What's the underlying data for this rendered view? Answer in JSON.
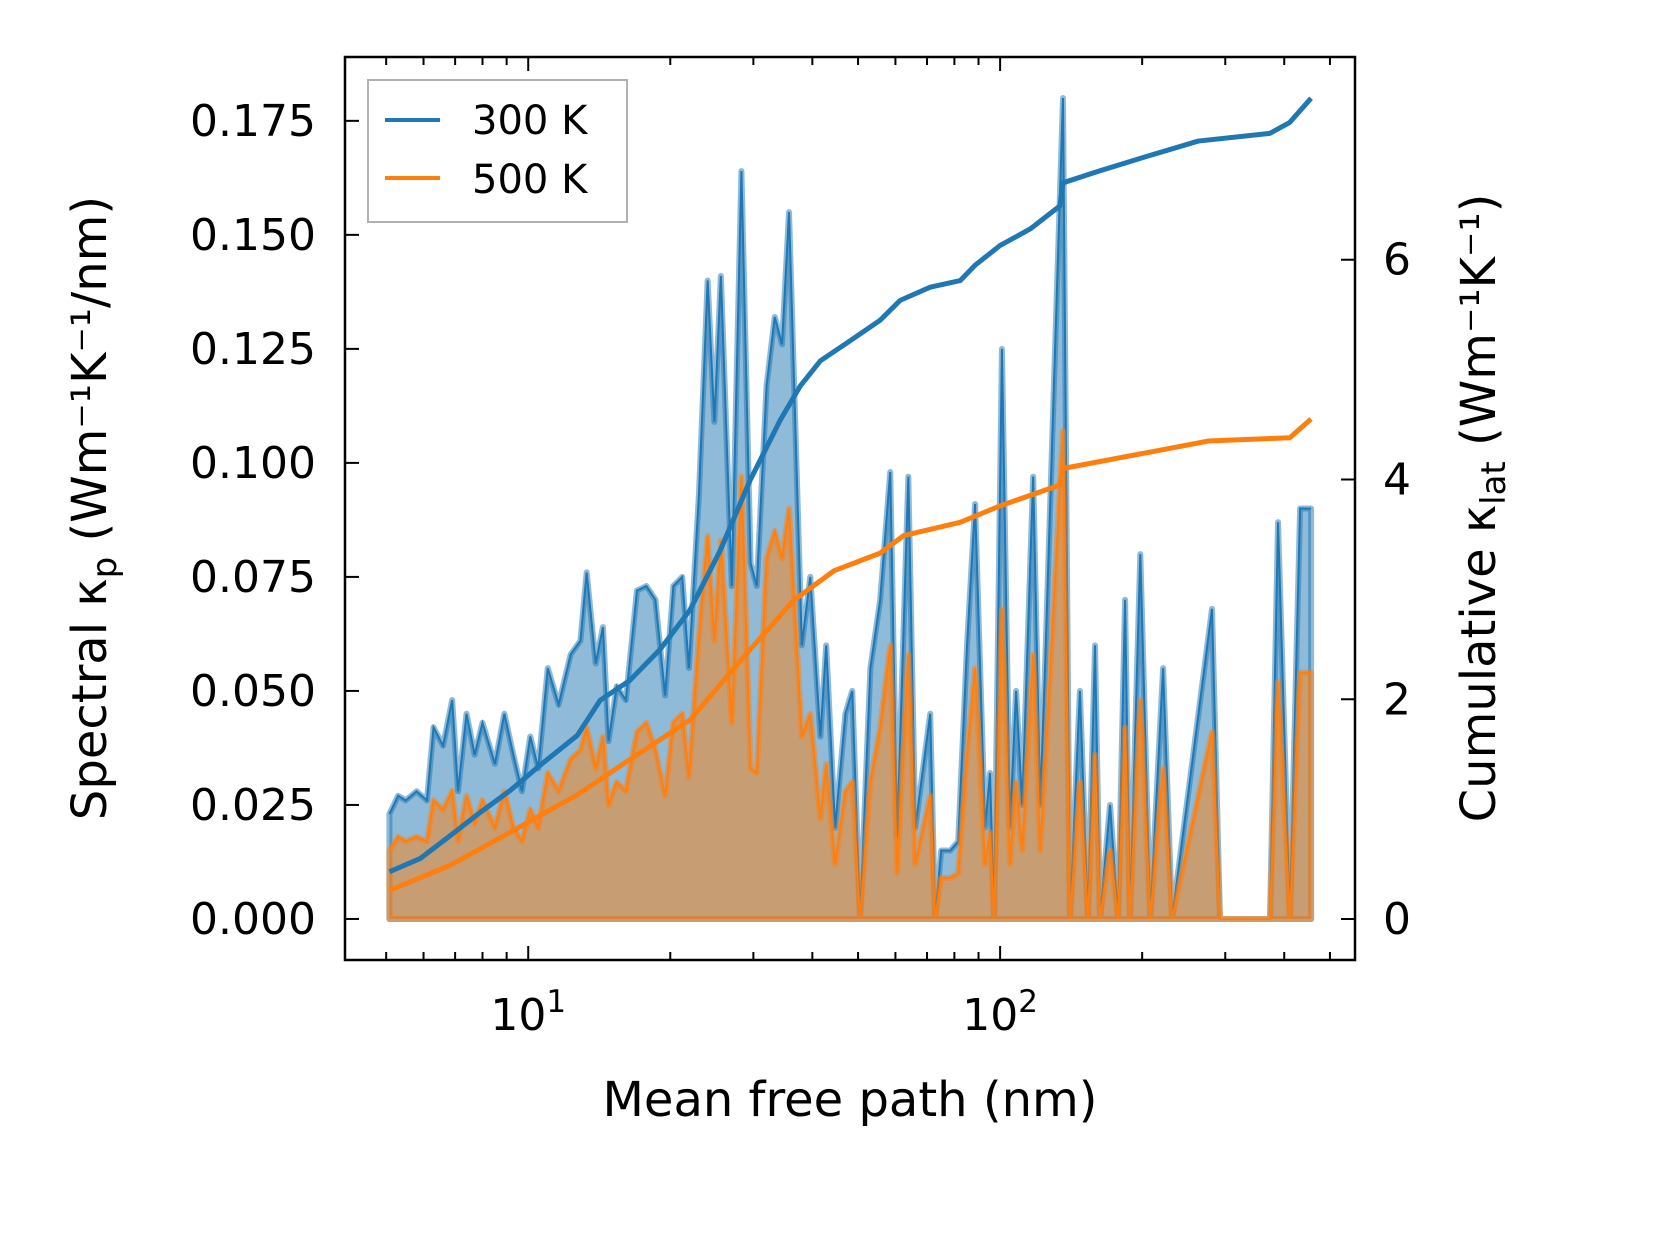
{
  "chart_data": {
    "type": "line",
    "title": "",
    "xlabel": "Mean free path (nm)",
    "xscale": "log",
    "xlim": [
      4.09,
      565
    ],
    "ylim_left": [
      -0.009,
      0.189
    ],
    "ylim_right": [
      -0.373,
      7.845
    ],
    "ylabel_left": {
      "prefix": "Spectral κ",
      "sub": "p",
      "units": " (Wm⁻¹K⁻¹/nm)"
    },
    "ylabel_right": {
      "prefix": "Cumulative κ",
      "sub": "lat",
      "units": " (Wm⁻¹K⁻¹)"
    },
    "xticks": [
      {
        "value": 10,
        "base": "10",
        "exp": "1"
      },
      {
        "value": 100,
        "base": "10",
        "exp": "2"
      }
    ],
    "yticks_left": [
      {
        "value": 0,
        "label": "0.000"
      },
      {
        "value": 0.025,
        "label": "0.025"
      },
      {
        "value": 0.05,
        "label": "0.050"
      },
      {
        "value": 0.075,
        "label": "0.075"
      },
      {
        "value": 0.1,
        "label": "0.100"
      },
      {
        "value": 0.125,
        "label": "0.125"
      },
      {
        "value": 0.15,
        "label": "0.150"
      },
      {
        "value": 0.175,
        "label": "0.175"
      }
    ],
    "yticks_right": [
      {
        "value": 0,
        "label": "0"
      },
      {
        "value": 2,
        "label": "2"
      },
      {
        "value": 4,
        "label": "4"
      },
      {
        "value": 6,
        "label": "6"
      }
    ],
    "legend": {
      "placement": "top-left",
      "entries": [
        {
          "label": "300 K",
          "color": "#1f77b4"
        },
        {
          "label": "500 K",
          "color": "#ff7f0e"
        }
      ]
    },
    "spectral": {
      "x": [
        5.08,
        5.3,
        5.5,
        5.8,
        6.1,
        6.3,
        6.6,
        6.9,
        7.1,
        7.4,
        7.7,
        8.0,
        8.5,
        8.9,
        9.3,
        9.7,
        10.1,
        10.5,
        11.0,
        11.6,
        12.3,
        12.9,
        13.3,
        13.9,
        14.4,
        14.8,
        15.4,
        16.1,
        17.0,
        17.8,
        18.6,
        19.5,
        20.3,
        21.2,
        21.9,
        23.0,
        24.0,
        24.8,
        25.6,
        27.0,
        28.3,
        29.6,
        30.5,
        32.0,
        33.3,
        34.5,
        35.7,
        38.0,
        39.6,
        41.6,
        42.8,
        44.7,
        47.0,
        48.6,
        50.5,
        53.1,
        55.7,
        58.5,
        60.5,
        63.9,
        66.1,
        71.1,
        72.8,
        75.0,
        78.4,
        81.5,
        85.1,
        88.5,
        92.9,
        95.2,
        97.1,
        100.9,
        104.9,
        108.1,
        111.4,
        117.5,
        121.6,
        124.5,
        135.9,
        140.6,
        147.6,
        153.5,
        158.9,
        162.8,
        171.0,
        177.8,
        184.0,
        188.4,
        198.2,
        208.0,
        221.5,
        231.4,
        281.2,
        292.4,
        373.2,
        388.1,
        411.2,
        432.2,
        456.0
      ],
      "k300": [
        0.023,
        0.027,
        0.026,
        0.028,
        0.026,
        0.042,
        0.038,
        0.048,
        0.028,
        0.045,
        0.036,
        0.043,
        0.034,
        0.045,
        0.036,
        0.028,
        0.04,
        0.033,
        0.055,
        0.047,
        0.058,
        0.061,
        0.076,
        0.056,
        0.064,
        0.039,
        0.051,
        0.048,
        0.072,
        0.073,
        0.07,
        0.049,
        0.073,
        0.075,
        0.055,
        0.093,
        0.14,
        0.109,
        0.141,
        0.073,
        0.164,
        0.078,
        0.073,
        0.117,
        0.132,
        0.126,
        0.155,
        0.06,
        0.075,
        0.04,
        0.06,
        0.02,
        0.045,
        0.05,
        0.0,
        0.055,
        0.07,
        0.098,
        0.018,
        0.097,
        0.02,
        0.045,
        0.0,
        0.015,
        0.015,
        0.017,
        0.06,
        0.091,
        0.02,
        0.032,
        0.0,
        0.125,
        0.02,
        0.05,
        0.025,
        0.097,
        0.025,
        0.055,
        0.18,
        0.0,
        0.05,
        0.0,
        0.06,
        0.0,
        0.025,
        0.0,
        0.07,
        0.0,
        0.08,
        0.0,
        0.055,
        0.0,
        0.068,
        0.0,
        0.0,
        0.087,
        0.0,
        0.09,
        0.09
      ],
      "k500": [
        0.015,
        0.018,
        0.017,
        0.018,
        0.017,
        0.026,
        0.024,
        0.028,
        0.017,
        0.027,
        0.021,
        0.026,
        0.02,
        0.028,
        0.02,
        0.017,
        0.024,
        0.02,
        0.032,
        0.028,
        0.035,
        0.037,
        0.042,
        0.033,
        0.04,
        0.025,
        0.03,
        0.028,
        0.041,
        0.043,
        0.037,
        0.027,
        0.043,
        0.045,
        0.031,
        0.062,
        0.084,
        0.061,
        0.083,
        0.043,
        0.097,
        0.033,
        0.032,
        0.079,
        0.085,
        0.079,
        0.09,
        0.04,
        0.045,
        0.022,
        0.034,
        0.012,
        0.028,
        0.03,
        0.0,
        0.03,
        0.042,
        0.06,
        0.01,
        0.058,
        0.012,
        0.027,
        0.0,
        0.009,
        0.009,
        0.01,
        0.036,
        0.055,
        0.012,
        0.019,
        0.0,
        0.068,
        0.012,
        0.03,
        0.015,
        0.058,
        0.015,
        0.033,
        0.107,
        0.0,
        0.03,
        0.0,
        0.036,
        0.0,
        0.015,
        0.0,
        0.042,
        0.0,
        0.048,
        0.0,
        0.033,
        0.0,
        0.041,
        0.0,
        0.0,
        0.052,
        0.0,
        0.054,
        0.054
      ]
    },
    "cumulative": {
      "x300": [
        5.08,
        5.9,
        6.84,
        7.91,
        9.16,
        10.6,
        12.7,
        14.2,
        16.4,
        19.0,
        22.0,
        25.5,
        29.5,
        34.2,
        37.7,
        41.6,
        48.0,
        55.7,
        61.4,
        71.1,
        82.3,
        88.5,
        100,
        115.8,
        133.9,
        135.9,
        162.8,
        208,
        263,
        373,
        411,
        456
      ],
      "k300": [
        0.43,
        0.55,
        0.76,
        0.97,
        1.17,
        1.4,
        1.67,
        1.99,
        2.17,
        2.45,
        2.81,
        3.35,
        3.99,
        4.54,
        4.85,
        5.08,
        5.26,
        5.45,
        5.63,
        5.75,
        5.81,
        5.95,
        6.13,
        6.28,
        6.49,
        6.7,
        6.81,
        6.95,
        7.08,
        7.15,
        7.25,
        7.47
      ],
      "x500": [
        5.08,
        6.84,
        9.16,
        12.7,
        16.4,
        22.0,
        29.5,
        36.5,
        44.5,
        55.7,
        62.5,
        82.3,
        100,
        133.9,
        135.9,
        208,
        276,
        411,
        456
      ],
      "k500": [
        0.26,
        0.49,
        0.79,
        1.13,
        1.45,
        1.81,
        2.45,
        2.9,
        3.17,
        3.33,
        3.49,
        3.61,
        3.76,
        3.95,
        4.1,
        4.25,
        4.35,
        4.38,
        4.55
      ]
    }
  }
}
